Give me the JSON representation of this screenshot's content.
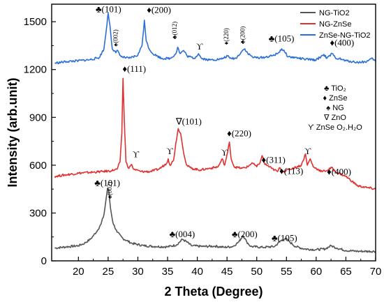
{
  "chart_data": {
    "type": "line",
    "xlabel": "2 Theta (Degree)",
    "ylabel": "Intensity (arb.unit)",
    "xlim": [
      15.5,
      70
    ],
    "ylim": [
      0,
      1610
    ],
    "xticks": [
      20,
      25,
      30,
      35,
      40,
      45,
      50,
      55,
      60,
      65,
      70
    ],
    "yticks": [
      0,
      300,
      600,
      900,
      1200,
      1500
    ],
    "grid": false,
    "legend_position": "top-right",
    "series": [
      {
        "name": "NG-TiO2",
        "color": "#555555",
        "points": [
          [
            16,
            80
          ],
          [
            18,
            88
          ],
          [
            20,
            95
          ],
          [
            21,
            110
          ],
          [
            22,
            135
          ],
          [
            23,
            180
          ],
          [
            23.8,
            230
          ],
          [
            24.3,
            290
          ],
          [
            24.7,
            400
          ],
          [
            24.9,
            455
          ],
          [
            25.1,
            440
          ],
          [
            25.4,
            330
          ],
          [
            25.8,
            240
          ],
          [
            26.5,
            180
          ],
          [
            27.5,
            140
          ],
          [
            29,
            110
          ],
          [
            31,
            95
          ],
          [
            33,
            90
          ],
          [
            35,
            88
          ],
          [
            36.5,
            100
          ],
          [
            37.5,
            135
          ],
          [
            38.2,
            120
          ],
          [
            39,
            95
          ],
          [
            41,
            90
          ],
          [
            43,
            92
          ],
          [
            44.5,
            85
          ],
          [
            46,
            90
          ],
          [
            47,
            120
          ],
          [
            47.7,
            160
          ],
          [
            48.3,
            120
          ],
          [
            49,
            90
          ],
          [
            51,
            85
          ],
          [
            53,
            90
          ],
          [
            54,
            125
          ],
          [
            54.8,
            140
          ],
          [
            55.5,
            120
          ],
          [
            56.5,
            90
          ],
          [
            58,
            75
          ],
          [
            60,
            70
          ],
          [
            61.5,
            75
          ],
          [
            62.5,
            95
          ],
          [
            63.5,
            80
          ],
          [
            65,
            65
          ],
          [
            67,
            60
          ],
          [
            70,
            60
          ]
        ]
      },
      {
        "name": "NG-ZnSe",
        "color": "#e03030",
        "points": [
          [
            16,
            530
          ],
          [
            18,
            540
          ],
          [
            20,
            550
          ],
          [
            22,
            555
          ],
          [
            24,
            560
          ],
          [
            25.5,
            565
          ],
          [
            26.5,
            575
          ],
          [
            27,
            620
          ],
          [
            27.3,
            800
          ],
          [
            27.5,
            1145
          ],
          [
            27.7,
            900
          ],
          [
            28,
            620
          ],
          [
            28.5,
            580
          ],
          [
            28.9,
            605
          ],
          [
            29.3,
            575
          ],
          [
            30.5,
            560
          ],
          [
            32,
            560
          ],
          [
            33.5,
            575
          ],
          [
            34.8,
            610
          ],
          [
            35.1,
            640
          ],
          [
            35.4,
            600
          ],
          [
            36,
            630
          ],
          [
            36.4,
            740
          ],
          [
            36.8,
            830
          ],
          [
            37.2,
            800
          ],
          [
            37.6,
            700
          ],
          [
            38.2,
            600
          ],
          [
            39,
            580
          ],
          [
            40.5,
            570
          ],
          [
            42,
            580
          ],
          [
            43.5,
            590
          ],
          [
            44.2,
            640
          ],
          [
            44.6,
            600
          ],
          [
            45.1,
            680
          ],
          [
            45.4,
            745
          ],
          [
            45.7,
            640
          ],
          [
            46.2,
            590
          ],
          [
            47.5,
            580
          ],
          [
            48.5,
            590
          ],
          [
            49.2,
            615
          ],
          [
            50,
            590
          ],
          [
            50.6,
            620
          ],
          [
            50.9,
            660
          ],
          [
            51.3,
            610
          ],
          [
            52.5,
            580
          ],
          [
            53.5,
            560
          ],
          [
            53.9,
            585
          ],
          [
            54.4,
            560
          ],
          [
            56,
            580
          ],
          [
            57.5,
            600
          ],
          [
            58.2,
            670
          ],
          [
            58.5,
            600
          ],
          [
            59,
            640
          ],
          [
            59.5,
            590
          ],
          [
            61,
            560
          ],
          [
            62,
            570
          ],
          [
            62.6,
            585
          ],
          [
            63.2,
            560
          ],
          [
            65,
            530
          ],
          [
            67,
            470
          ],
          [
            68.5,
            460
          ],
          [
            70,
            450
          ]
        ]
      },
      {
        "name": "ZnSe-NG-TiO2",
        "color": "#2b6fd6",
        "points": [
          [
            16,
            1240
          ],
          [
            18,
            1250
          ],
          [
            20,
            1255
          ],
          [
            22,
            1262
          ],
          [
            23.5,
            1275
          ],
          [
            24.3,
            1330
          ],
          [
            24.7,
            1450
          ],
          [
            25,
            1555
          ],
          [
            25.3,
            1480
          ],
          [
            25.7,
            1330
          ],
          [
            26.3,
            1305
          ],
          [
            26.6,
            1320
          ],
          [
            27.2,
            1280
          ],
          [
            28.5,
            1270
          ],
          [
            30,
            1290
          ],
          [
            30.7,
            1350
          ],
          [
            31.1,
            1510
          ],
          [
            31.4,
            1380
          ],
          [
            31.9,
            1330
          ],
          [
            32.5,
            1300
          ],
          [
            34,
            1270
          ],
          [
            35.5,
            1270
          ],
          [
            36.4,
            1300
          ],
          [
            36.7,
            1340
          ],
          [
            37.1,
            1300
          ],
          [
            37.7,
            1320
          ],
          [
            38.3,
            1285
          ],
          [
            39.5,
            1270
          ],
          [
            40.2,
            1300
          ],
          [
            40.7,
            1270
          ],
          [
            42,
            1260
          ],
          [
            44,
            1265
          ],
          [
            45.1,
            1285
          ],
          [
            45.5,
            1270
          ],
          [
            46.5,
            1270
          ],
          [
            47.6,
            1320
          ],
          [
            48,
            1330
          ],
          [
            48.5,
            1300
          ],
          [
            49.5,
            1275
          ],
          [
            51,
            1275
          ],
          [
            52.5,
            1285
          ],
          [
            53.5,
            1300
          ],
          [
            54.2,
            1330
          ],
          [
            54.7,
            1310
          ],
          [
            55.3,
            1280
          ],
          [
            56.5,
            1275
          ],
          [
            58,
            1265
          ],
          [
            60,
            1260
          ],
          [
            61.3,
            1295
          ],
          [
            61.8,
            1270
          ],
          [
            62.7,
            1300
          ],
          [
            63.2,
            1275
          ],
          [
            65,
            1255
          ],
          [
            67,
            1245
          ],
          [
            68.5,
            1250
          ],
          [
            69.5,
            1270
          ],
          [
            70,
            1250
          ]
        ]
      }
    ],
    "annotations": [
      {
        "text": "♣(101)",
        "x": 22.9,
        "y": 1560,
        "size": "normal"
      },
      {
        "text": "♦(200)",
        "x": 31.5,
        "y": 1555,
        "size": "normal"
      },
      {
        "text": "♣(012)",
        "x": 36.5,
        "y": 1390,
        "size": "small",
        "rotate": true
      },
      {
        "text": "ϒ",
        "x": 39.8,
        "y": 1325,
        "size": "normal"
      },
      {
        "text": "♦(220)",
        "x": 45.2,
        "y": 1355,
        "size": "small",
        "rotate": true
      },
      {
        "text": "♣(200)",
        "x": 48.0,
        "y": 1360,
        "size": "small",
        "rotate": true
      },
      {
        "text": "♣(105)",
        "x": 52.0,
        "y": 1375,
        "size": "normal"
      },
      {
        "text": "♦(400)",
        "x": 62.3,
        "y": 1350,
        "size": "normal"
      },
      {
        "text": "♠(002)",
        "x": 26.6,
        "y": 1345,
        "size": "small",
        "rotate": true
      },
      {
        "text": "♦(111)",
        "x": 27.4,
        "y": 1185,
        "size": "normal"
      },
      {
        "text": "ϒ",
        "x": 29.1,
        "y": 650,
        "size": "normal"
      },
      {
        "text": "ϒ",
        "x": 34.8,
        "y": 670,
        "size": "normal"
      },
      {
        "text": "∇(101)",
        "x": 36.4,
        "y": 855,
        "size": "normal"
      },
      {
        "text": "ϒ",
        "x": 44.0,
        "y": 660,
        "size": "normal"
      },
      {
        "text": "♦(220)",
        "x": 45.0,
        "y": 780,
        "size": "normal"
      },
      {
        "text": "♦(311)",
        "x": 50.8,
        "y": 615,
        "size": "normal"
      },
      {
        "text": "ϒ",
        "x": 58.0,
        "y": 670,
        "size": "normal"
      },
      {
        "text": "♦(113)",
        "x": 53.8,
        "y": 545,
        "size": "normal"
      },
      {
        "text": "♦(400)",
        "x": 61.8,
        "y": 540,
        "size": "normal"
      },
      {
        "text": "♣(101)",
        "x": 22.7,
        "y": 470,
        "size": "normal"
      },
      {
        "text": "♠(002)",
        "x": 25.6,
        "y": 390,
        "size": "small",
        "rotate": true
      },
      {
        "text": "♣(004)",
        "x": 35.3,
        "y": 148,
        "size": "normal"
      },
      {
        "text": "♣(200)",
        "x": 45.8,
        "y": 148,
        "size": "normal"
      },
      {
        "text": "♣(105)",
        "x": 52.5,
        "y": 125,
        "size": "normal"
      }
    ],
    "symbol_key": [
      {
        "symbol": "♣",
        "label": "TiO₂"
      },
      {
        "symbol": "♦",
        "label": "ZnSe"
      },
      {
        "symbol": "♠",
        "label": "NG"
      },
      {
        "symbol": "∇",
        "label": "ZnO"
      },
      {
        "symbol": "ϒ",
        "label": "ZnSe O₂.H₂O"
      }
    ]
  }
}
